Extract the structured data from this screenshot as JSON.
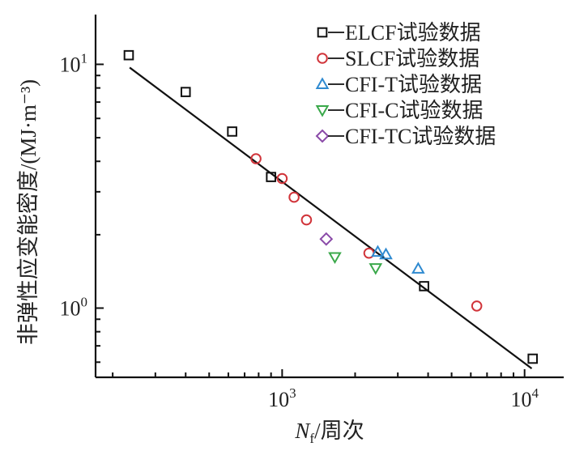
{
  "chart_data": {
    "type": "scatter",
    "xscale": "log",
    "yscale": "log",
    "xlim": [
      170,
      14500
    ],
    "ylim": [
      0.52,
      16
    ],
    "grid": false,
    "legend_position": "top-right",
    "xlabel_symbol": "N",
    "xlabel_subscript": "f",
    "xlabel_rest": "/周次",
    "ylabel": "非弹性应变能密度/(MJ·m⁻³)",
    "x_ticks": [
      {
        "value": 1000,
        "mantissa": "10",
        "exponent": "3"
      },
      {
        "value": 10000,
        "mantissa": "10",
        "exponent": "4"
      }
    ],
    "y_ticks": [
      {
        "value": 1,
        "mantissa": "10",
        "exponent": "0"
      },
      {
        "value": 10,
        "mantissa": "10",
        "exponent": "1"
      }
    ],
    "series": [
      {
        "name": "ELCF试验数据",
        "marker": "square",
        "color": "#111111",
        "points": [
          [
            233,
            10.9
          ],
          [
            400,
            7.7
          ],
          [
            622,
            5.3
          ],
          [
            900,
            3.45
          ],
          [
            3850,
            1.23
          ],
          [
            10800,
            0.62
          ]
        ]
      },
      {
        "name": "SLCF试验数据",
        "marker": "circle",
        "color": "#d1343a",
        "points": [
          [
            780,
            4.1
          ],
          [
            1000,
            3.4
          ],
          [
            1120,
            2.85
          ],
          [
            1260,
            2.3
          ],
          [
            2280,
            1.68
          ],
          [
            6350,
            1.02
          ]
        ]
      },
      {
        "name": "CFI-T试验数据",
        "marker": "triangle-up",
        "color": "#2f8ad0",
        "points": [
          [
            2480,
            1.7
          ],
          [
            2680,
            1.66
          ],
          [
            3640,
            1.45
          ]
        ]
      },
      {
        "name": "CFI-C试验数据",
        "marker": "triangle-down",
        "color": "#3aa84a",
        "points": [
          [
            1650,
            1.62
          ],
          [
            2430,
            1.46
          ]
        ]
      },
      {
        "name": "CFI-TC试验数据",
        "marker": "diamond",
        "color": "#8a4aa8",
        "points": [
          [
            1520,
            1.92
          ]
        ]
      }
    ],
    "fit_line": {
      "color": "#111111",
      "points": [
        [
          235,
          9.7
        ],
        [
          10700,
          0.565
        ]
      ]
    }
  }
}
